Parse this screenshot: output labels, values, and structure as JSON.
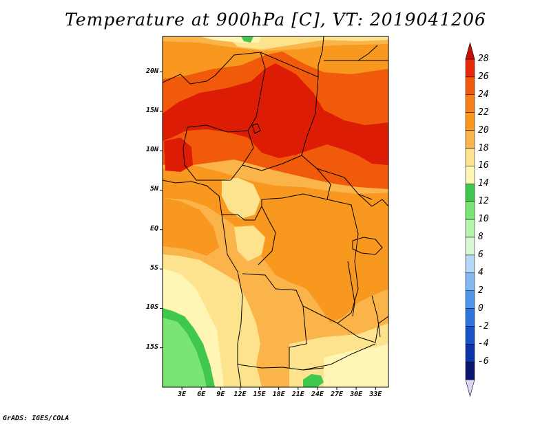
{
  "title": "Temperature at 900hPa [C], VT: 2019041206",
  "footer": "GrADS: IGES/COLA",
  "map": {
    "lat_labels": [
      "20N",
      "15N",
      "10N",
      "5N",
      "EQ",
      "5S",
      "10S",
      "15S"
    ],
    "lon_labels": [
      "3E",
      "6E",
      "9E",
      "12E",
      "15E",
      "18E",
      "21E",
      "24E",
      "27E",
      "30E",
      "33E"
    ],
    "lat_range": [
      -20,
      24.5
    ],
    "lon_range": [
      0,
      35
    ],
    "fill_colors": {
      "deep_red": "#dc1c05",
      "red_orange": "#f05a0a",
      "orange": "#f9981e",
      "light_orange": "#fab449",
      "pale_yellow": "#fde38e",
      "cream": "#fff5b4",
      "green": "#3fc84d",
      "light_green": "#7ae475"
    }
  },
  "colorbar": {
    "labels": [
      "28",
      "26",
      "24",
      "22",
      "20",
      "18",
      "16",
      "14",
      "12",
      "10",
      "8",
      "6",
      "4",
      "2",
      "0",
      "-2",
      "-4",
      "-6"
    ],
    "colors": [
      "#e9290a",
      "#f05a0a",
      "#f7801b",
      "#f9981e",
      "#fab449",
      "#fde38e",
      "#fff5b4",
      "#3fc84d",
      "#7ae475",
      "#b6f3ac",
      "#d8f8d3",
      "#b5d8f7",
      "#83b9f3",
      "#4f95ea",
      "#2f74dc",
      "#1853c8",
      "#0c33a8",
      "#0a1670"
    ],
    "top_arrow_color": "#c8100b",
    "bottom_arrow_color": "#dad8f6"
  }
}
